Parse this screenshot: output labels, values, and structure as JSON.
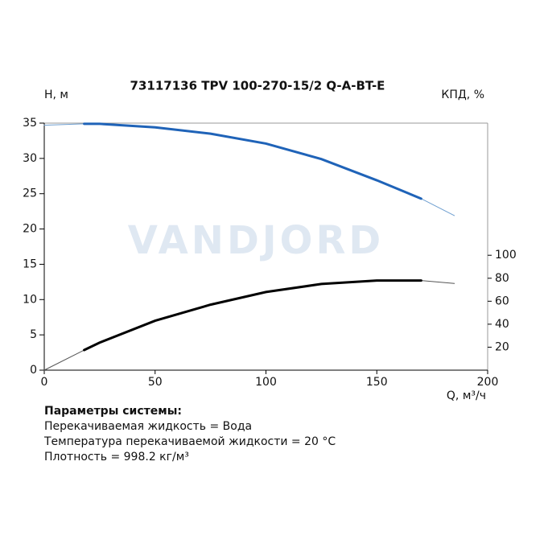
{
  "chart_data": {
    "type": "line",
    "title": "73117136 TPV 100-270-15/2 Q-A-BT-E",
    "ylabel": "H, м",
    "y2label": "КПД, %",
    "xlabel": "Q, м³/ч",
    "watermark": "VANDJORD",
    "x": [
      0,
      18,
      25,
      50,
      75,
      100,
      125,
      150,
      170,
      185
    ],
    "xlim": [
      0,
      200
    ],
    "xticks": [
      0,
      50,
      100,
      150,
      200
    ],
    "ylim": [
      0,
      35
    ],
    "yticks": [
      0,
      5,
      10,
      15,
      20,
      25,
      30,
      35
    ],
    "y2lim": [
      0,
      215
    ],
    "y2ticks": [
      20,
      40,
      60,
      80,
      100
    ],
    "series": [
      {
        "color": "#6f9fd0",
        "line_width": 1,
        "values": [
          34.7,
          34.9,
          34.9,
          34.4,
          33.5,
          32.1,
          29.9,
          26.9,
          24.3,
          21.9
        ]
      },
      {
        "color": "#1f63b8",
        "line_width": 3,
        "values": [
          null,
          34.9,
          34.9,
          34.4,
          33.5,
          32.1,
          29.9,
          26.9,
          24.3,
          null
        ]
      },
      {
        "color": "#555555",
        "line_width": 1,
        "axis": "y2",
        "values": [
          0,
          17.5,
          24,
          43,
          57,
          68,
          75,
          78,
          78,
          75.5
        ]
      },
      {
        "color": "#000000",
        "line_width": 3,
        "axis": "y2",
        "values": [
          null,
          17.5,
          24,
          43,
          57,
          68,
          75,
          78,
          78,
          null
        ]
      }
    ],
    "notes": {
      "heading": "Параметры системы:",
      "lines": [
        "Перекачиваемая жидкость = Вода",
        "Температура перекачиваемой жидкости = 20 °C",
        "Плотность = 998.2 кг/м³"
      ]
    }
  }
}
